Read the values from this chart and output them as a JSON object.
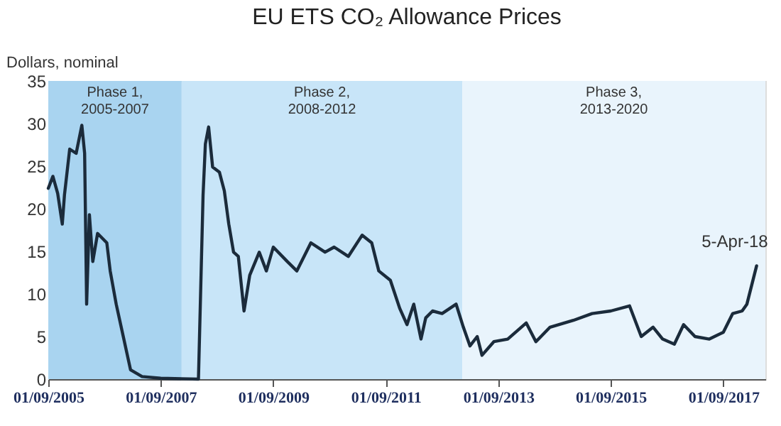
{
  "chart_data": {
    "type": "line",
    "title": "EU ETS CO₂ Allowance Prices",
    "ylabel": "Dollars, nominal",
    "xlim": [
      "2005-09-01",
      "2018-06-01"
    ],
    "xticks": [
      {
        "value": "2005-09-01",
        "label": "01/09/2005"
      },
      {
        "value": "2007-09-01",
        "label": "01/09/2007"
      },
      {
        "value": "2009-09-01",
        "label": "01/09/2009"
      },
      {
        "value": "2011-09-01",
        "label": "01/09/2011"
      },
      {
        "value": "2013-09-01",
        "label": "01/09/2013"
      },
      {
        "value": "2015-09-01",
        "label": "01/09/2015"
      },
      {
        "value": "2017-09-01",
        "label": "01/09/2017"
      }
    ],
    "ylim": [
      0,
      35
    ],
    "yticks": [
      0,
      5,
      10,
      15,
      20,
      25,
      30,
      35
    ],
    "line_style": "solid",
    "marker": "none",
    "x": [
      "2005-09-01",
      "2005-10-01",
      "2005-11-01",
      "2005-12-01",
      "2005-12-15",
      "2006-01-18",
      "2006-03-01",
      "2006-04-07",
      "2006-04-25",
      "2006-05-08",
      "2006-05-26",
      "2006-06-17",
      "2006-07-18",
      "2006-09-16",
      "2006-10-08",
      "2006-11-16",
      "2007-01-01",
      "2007-02-17",
      "2007-05-03",
      "2007-09-01",
      "2008-05-03",
      "2008-06-02",
      "2008-06-17",
      "2008-07-08",
      "2008-08-03",
      "2008-09-16",
      "2008-10-18",
      "2008-11-16",
      "2008-12-17",
      "2009-01-17",
      "2009-02-23",
      "2009-04-01",
      "2009-06-02",
      "2009-07-18",
      "2009-09-01",
      "2009-12-01",
      "2010-02-01",
      "2010-05-03",
      "2010-08-03",
      "2010-10-01",
      "2011-01-01",
      "2011-04-01",
      "2011-06-02",
      "2011-07-18",
      "2011-10-01",
      "2011-12-01",
      "2012-01-17",
      "2012-03-01",
      "2012-04-17",
      "2012-05-18",
      "2012-07-01",
      "2012-09-01",
      "2012-12-01",
      "2013-01-17",
      "2013-03-01",
      "2013-04-17",
      "2013-05-18",
      "2013-08-03",
      "2013-11-01",
      "2014-03-01",
      "2014-05-03",
      "2014-08-03",
      "2015-01-01",
      "2015-05-03",
      "2015-09-01",
      "2016-01-01",
      "2016-03-17",
      "2016-06-02",
      "2016-08-03",
      "2016-10-18",
      "2016-12-17",
      "2017-03-01",
      "2017-06-02",
      "2017-09-01",
      "2017-11-01",
      "2018-01-01",
      "2018-02-01",
      "2018-04-05"
    ],
    "series": [
      {
        "color": "#1b2b3b",
        "values": [
          22.4,
          23.8,
          21.8,
          18.2,
          21.6,
          27,
          26.5,
          29.8,
          26.5,
          8.8,
          19.3,
          13.8,
          17.1,
          16,
          12.7,
          8.8,
          5,
          1.1,
          0.3,
          0.1,
          0,
          21.6,
          27.6,
          29.6,
          24.9,
          24.3,
          22.1,
          18.2,
          14.9,
          14.4,
          8,
          12.2,
          14.9,
          12.7,
          15.5,
          13.8,
          12.7,
          16,
          14.9,
          15.5,
          14.4,
          16.9,
          16,
          12.7,
          11.6,
          8.3,
          6.4,
          8.8,
          4.7,
          7.2,
          8,
          7.7,
          8.8,
          6.1,
          3.9,
          5,
          2.8,
          4.4,
          4.7,
          6.6,
          4.4,
          6.1,
          6.9,
          7.7,
          8,
          8.6,
          5,
          6.1,
          4.7,
          4.1,
          6.4,
          5,
          4.7,
          5.5,
          7.7,
          8,
          8.8,
          13.3
        ]
      }
    ],
    "bands": [
      {
        "axis": "x",
        "from": "2005-09-01",
        "to": "2008-01-15",
        "label": "Phase 1,\n2005-2007",
        "color": "#a9d4f0"
      },
      {
        "axis": "x",
        "from": "2008-01-15",
        "to": "2013-01-10",
        "label": "Phase 2,\n2008-2012",
        "color": "#c8e5f8"
      },
      {
        "axis": "x",
        "from": "2013-01-10",
        "to": "2018-06-01",
        "label": "Phase 3,\n2013-2020",
        "color": "#e9f4fc"
      }
    ],
    "annotations": [
      {
        "text": "5-Apr-18",
        "x": "2018-04-05",
        "y": 13.3
      }
    ]
  }
}
